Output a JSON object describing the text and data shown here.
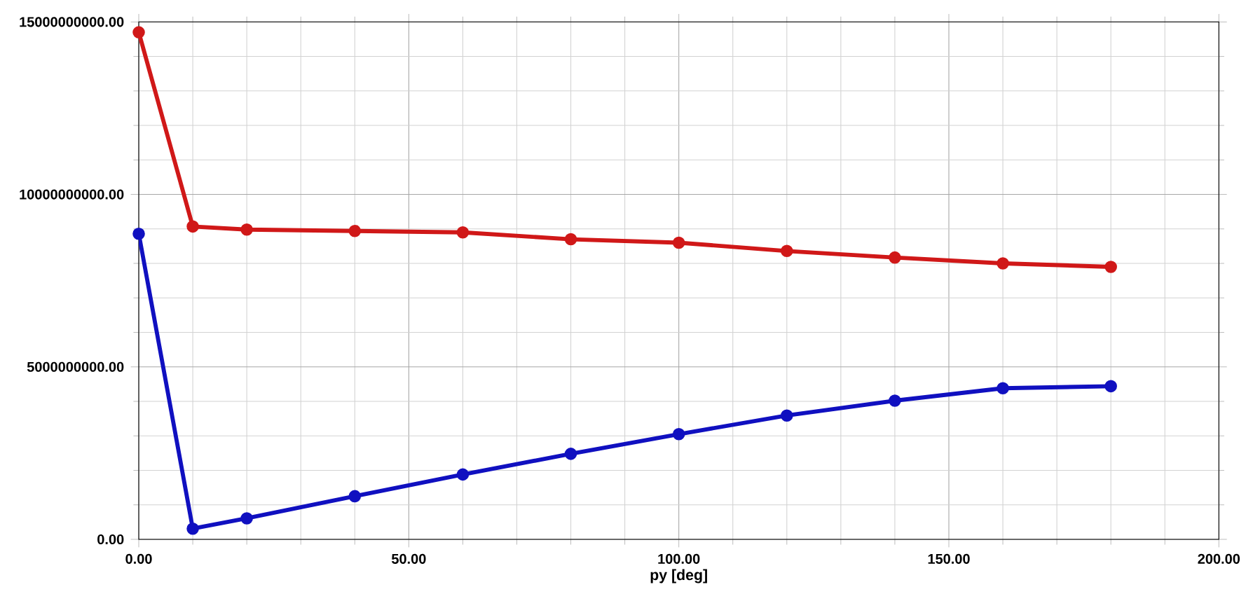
{
  "chart_data": {
    "type": "line",
    "xlabel": "py [deg]",
    "xlim": [
      0,
      200
    ],
    "ylim": [
      0,
      15000000000
    ],
    "xticks": [
      {
        "value": 0,
        "label": "0.00"
      },
      {
        "value": 50,
        "label": "50.00"
      },
      {
        "value": 100,
        "label": "100.00"
      },
      {
        "value": 150,
        "label": "150.00"
      },
      {
        "value": 200,
        "label": "200.00"
      }
    ],
    "yticks": [
      {
        "value": 0,
        "label": "0.00"
      },
      {
        "value": 5000000000,
        "label": "5000000000.00"
      },
      {
        "value": 10000000000,
        "label": "10000000000.00"
      },
      {
        "value": 15000000000,
        "label": "15000000000.00"
      }
    ],
    "grid": true,
    "marker": "circle",
    "line_style": "solid",
    "x": [
      0,
      10,
      20,
      40,
      60,
      80,
      100,
      120,
      140,
      160,
      180
    ],
    "series": [
      {
        "color": "#d01818",
        "values": [
          14700000000,
          9070000000,
          8980000000,
          8940000000,
          8900000000,
          8700000000,
          8600000000,
          8360000000,
          8170000000,
          8000000000,
          7900000000
        ]
      },
      {
        "color": "#1010c0",
        "values": [
          8860000000,
          310000000,
          610000000,
          1250000000,
          1880000000,
          2480000000,
          3050000000,
          3590000000,
          4020000000,
          4380000000,
          4440000000
        ]
      }
    ]
  }
}
